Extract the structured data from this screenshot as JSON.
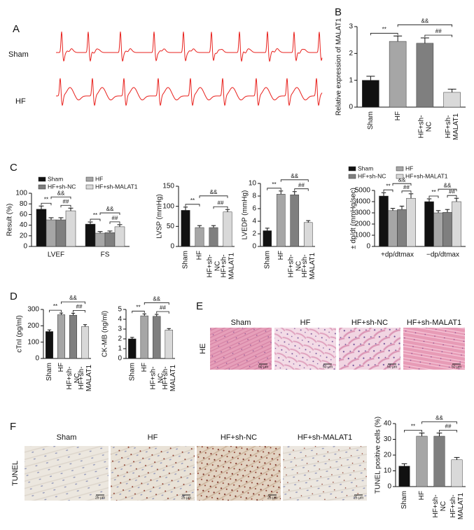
{
  "panels": [
    "A",
    "B",
    "C",
    "D",
    "E",
    "F"
  ],
  "ecg": {
    "labels": [
      "Sham",
      "HF"
    ]
  },
  "he": {
    "row_label": "HE",
    "columns": [
      "Sham",
      "HF",
      "HF+sh-NC",
      "HF+sh-MALAT1"
    ],
    "scale_bar": "50 µm"
  },
  "tunel": {
    "row_label": "TUNEL",
    "columns": [
      "Sham",
      "HF",
      "HF+sh-NC",
      "HF+sh-MALAT1"
    ],
    "scale_bar": "25 µm"
  },
  "chart_data": [
    {
      "type": "bar",
      "ylabel": "Relative expression of MALAT1",
      "categories": [
        "Sham",
        "HF",
        "HF+sh-NC",
        "HF+sh-MALAT1"
      ],
      "values": [
        1.0,
        2.45,
        2.38,
        0.55
      ],
      "errors": [
        0.15,
        0.2,
        0.2,
        0.12
      ],
      "colors": [
        "#111111",
        "#a6a6a6",
        "#7f7f7f",
        "#d9d9d9"
      ],
      "ylim": [
        0,
        3
      ],
      "yticks": [
        0,
        1,
        2,
        3
      ],
      "annotations": [
        "**",
        "##",
        "&&"
      ]
    },
    {
      "type": "bar",
      "ylabel": "Result (%)",
      "categories": [
        "LVEF",
        "FS"
      ],
      "series": [
        {
          "name": "Sham",
          "color": "#111111",
          "values": [
            70,
            42
          ],
          "errors": [
            6,
            4
          ]
        },
        {
          "name": "HF",
          "color": "#a6a6a6",
          "values": [
            50,
            25
          ],
          "errors": [
            4,
            3
          ]
        },
        {
          "name": "HF+sh-NC",
          "color": "#7f7f7f",
          "values": [
            50,
            26
          ],
          "errors": [
            4,
            3
          ]
        },
        {
          "name": "HF+sh-MALAT1",
          "color": "#d9d9d9",
          "values": [
            67,
            37
          ],
          "errors": [
            5,
            4
          ]
        }
      ],
      "ylim": [
        0,
        100
      ],
      "yticks": [
        0,
        20,
        40,
        60,
        80,
        100
      ],
      "annotations": [
        "**",
        "##",
        "&&"
      ]
    },
    {
      "type": "bar",
      "ylabel": "LVSP (mmHg)",
      "categories": [
        "Sham",
        "HF",
        "HF+sh-NC",
        "HF+sh-MALAT1"
      ],
      "values": [
        90,
        47,
        47,
        86
      ],
      "errors": [
        8,
        5,
        5,
        6
      ],
      "colors": [
        "#111111",
        "#a6a6a6",
        "#7f7f7f",
        "#d9d9d9"
      ],
      "ylim": [
        0,
        150
      ],
      "yticks": [
        0,
        50,
        100,
        150
      ],
      "annotations": [
        "**",
        "##",
        "&&"
      ]
    },
    {
      "type": "bar",
      "ylabel": "LVEDP (mmHg)",
      "categories": [
        "Sham",
        "HF",
        "HF+sh-NC",
        "HF+sh-MALAT1"
      ],
      "values": [
        2.5,
        8.3,
        8.2,
        3.8
      ],
      "errors": [
        0.4,
        0.5,
        0.5,
        0.3
      ],
      "colors": [
        "#111111",
        "#a6a6a6",
        "#7f7f7f",
        "#d9d9d9"
      ],
      "ylim": [
        0,
        10
      ],
      "yticks": [
        0,
        2,
        4,
        6,
        8,
        10
      ],
      "annotations": [
        "**",
        "##",
        "&&"
      ]
    },
    {
      "type": "bar",
      "ylabel": "± dp/dt (mmHg/sec)",
      "categories": [
        "+dp/dtmax",
        "−dp/dtmax"
      ],
      "series": [
        {
          "name": "Sham",
          "color": "#111111",
          "values": [
            4500,
            4000
          ],
          "errors": [
            300,
            250
          ]
        },
        {
          "name": "HF",
          "color": "#a6a6a6",
          "values": [
            3200,
            3000
          ],
          "errors": [
            200,
            200
          ]
        },
        {
          "name": "HF+sh-NC",
          "color": "#7f7f7f",
          "values": [
            3300,
            3050
          ],
          "errors": [
            300,
            250
          ]
        },
        {
          "name": "HF+sh-MALAT1",
          "color": "#d9d9d9",
          "values": [
            4300,
            4000
          ],
          "errors": [
            400,
            300
          ]
        }
      ],
      "ylim": [
        0,
        5000
      ],
      "yticks": [
        0,
        1000,
        2000,
        3000,
        4000,
        5000
      ],
      "annotations": [
        "**",
        "##",
        "&&"
      ]
    },
    {
      "type": "bar",
      "ylabel": "cTnI (pg/ml)",
      "categories": [
        "Sham",
        "HF",
        "HF+sh-NC",
        "HF+sh-MALAT1"
      ],
      "values": [
        165,
        268,
        265,
        195
      ],
      "errors": [
        10,
        10,
        12,
        12
      ],
      "colors": [
        "#111111",
        "#a6a6a6",
        "#7f7f7f",
        "#d9d9d9"
      ],
      "ylim": [
        0,
        300
      ],
      "yticks": [
        0,
        100,
        200,
        300
      ],
      "annotations": [
        "**",
        "##",
        "&&"
      ]
    },
    {
      "type": "bar",
      "ylabel": "CK-MB (ng/ml)",
      "categories": [
        "Sham",
        "HF",
        "HF+sh-NC",
        "HF+sh-MALAT1"
      ],
      "values": [
        2.0,
        4.35,
        4.3,
        2.9
      ],
      "errors": [
        0.15,
        0.2,
        0.2,
        0.15
      ],
      "colors": [
        "#111111",
        "#a6a6a6",
        "#7f7f7f",
        "#d9d9d9"
      ],
      "ylim": [
        0,
        5
      ],
      "yticks": [
        0,
        1,
        2,
        3,
        4,
        5
      ],
      "annotations": [
        "**",
        "##",
        "&&"
      ]
    },
    {
      "type": "bar",
      "ylabel": "TUNEL positive cells (%)",
      "categories": [
        "Sham",
        "HF",
        "HF+sh-NC",
        "HF+sh-MALAT1"
      ],
      "values": [
        13,
        32,
        32,
        17
      ],
      "errors": [
        1.5,
        2,
        2,
        1.5
      ],
      "colors": [
        "#111111",
        "#a6a6a6",
        "#7f7f7f",
        "#d9d9d9"
      ],
      "ylim": [
        0,
        40
      ],
      "yticks": [
        0,
        10,
        20,
        30,
        40
      ],
      "annotations": [
        "**",
        "##",
        "&&"
      ]
    }
  ]
}
